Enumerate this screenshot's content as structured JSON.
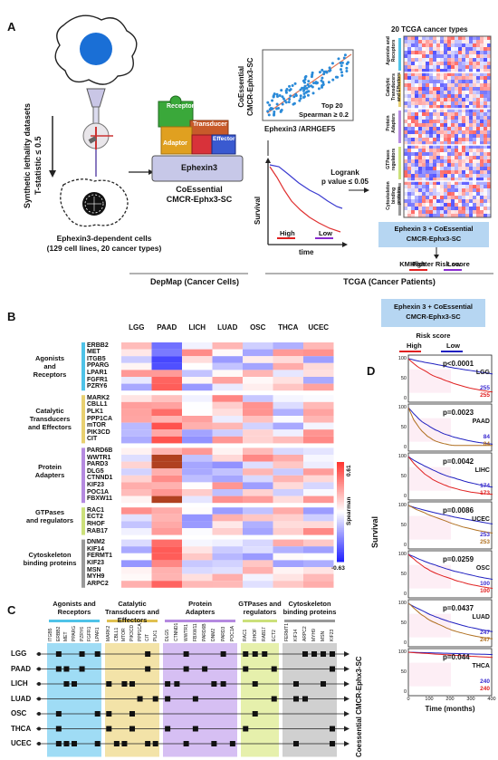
{
  "panels": {
    "A": "A",
    "B": "B",
    "C": "C",
    "D": "D"
  },
  "panel_a": {
    "synthetic_label_1": "Synthetic lethality datasets",
    "synthetic_label_2": "T-statistic ≤ 0.5",
    "cells_label_1": "Ephexin3-dependent cells",
    "cells_label_2": "(129 cell lines, 20 cancer types)",
    "puzzle": {
      "receptor": "Receptor",
      "transducer": "Transducer",
      "adaptor": "Adaptor",
      "effector": "Effector",
      "center": "Ephexin3"
    },
    "coessential_1": "CoEssential",
    "coessential_2": "CMCR-Ephx3-SC",
    "scatter_ylabel_1": "CoEssential",
    "scatter_ylabel_2": "CMCR-Ephx3-SC",
    "scatter_xlabel": "Ephexin3 /ARHGEF5",
    "top20": "Top 20",
    "spearman": "Spearman ≥ 0.2",
    "km_ylabel": "Survival",
    "km_xlabel": "time",
    "logrank_1": "Logrank",
    "logrank_2": "p value ≤ 0.05",
    "high": "High",
    "low": "Low",
    "tcga_title": "20 TCGA cancer types",
    "heat_rows": [
      "Agonists and Receptors",
      "Catalytic Transducers and Effectors",
      "Protein Adapters",
      "GTPases regulators",
      "Cytoskeleton binding proteins"
    ],
    "box_1": "Ephexin 3 + CoEssential",
    "box_2": "CMCR-Ephx3-SC",
    "km_plotter": "KM Plotter Risk score",
    "depmap": "DepMap (Cancer Cells)",
    "tcga": "TCGA (Cancer Patients)"
  },
  "panel_b": {
    "columns": [
      "LGG",
      "PAAD",
      "LICH",
      "LUAD",
      "OSC",
      "THCA",
      "UCEC"
    ],
    "groups": [
      {
        "label_1": "Agonists",
        "label_2": "and",
        "label_3": "Receptors",
        "color": "#4fc3e8",
        "genes": [
          "ERBB2",
          "MET",
          "ITGB5",
          "PPARG",
          "LPAR1",
          "FGFR1",
          "PZRY6"
        ]
      },
      {
        "label_1": "Catalytic",
        "label_2": "Transducers",
        "label_3": "and Effectors",
        "color": "#e8d070",
        "genes": [
          "MARK2",
          "CBLL1",
          "PLK1",
          "PPP1CA",
          "mTOR",
          "PIK3CD",
          "CIT"
        ]
      },
      {
        "label_1": "Protein",
        "label_2": "Adapters",
        "label_3": "",
        "color": "#b58ae0",
        "genes": [
          "PARD6B",
          "WWTR1",
          "PARD3",
          "DLG5",
          "CTNND1",
          "KIF23",
          "POC1A",
          "FBXW11"
        ]
      },
      {
        "label_1": "GTPases",
        "label_2": "and regulators",
        "label_3": "",
        "color": "#cbe07a",
        "genes": [
          "RAC1",
          "ECT2",
          "RHOF",
          "RAB17"
        ]
      },
      {
        "label_1": "Cytoskeleton",
        "label_2": "binding proteins",
        "label_3": "",
        "color": "#999999",
        "genes": [
          "DNM2",
          "KIF14",
          "FERMT1",
          "KIF23",
          "MSN",
          "MYH9",
          "ARPC2"
        ]
      }
    ],
    "colorbar_max": "0.61",
    "colorbar_min": "-0.63",
    "colorbar_label": "Spearman"
  },
  "panel_c": {
    "groups": [
      {
        "label_1": "Agonists and",
        "label_2": "Receptors",
        "color": "#9fdcf5",
        "bar": "#4fc3e8",
        "genes": [
          "ITGB5",
          "ERBB2",
          "MET",
          "PPARG",
          "PZRY6",
          "FGFR1",
          "LPAR1"
        ]
      },
      {
        "label_1": "Catalytic",
        "label_2": "Transducers and Effectors",
        "color": "#f3e3a8",
        "bar": "#e0c050",
        "genes": [
          "MARK2",
          "CBLL1",
          "MTOR",
          "PIK3CD",
          "PPP1CA",
          "CIT",
          "PLK1"
        ]
      },
      {
        "label_1": "Protein",
        "label_2": "Adapters",
        "color": "#d6bff3",
        "bar": "#b58ae0",
        "genes": [
          "DLG5",
          "CTNND1",
          "WWTR1",
          "FBXW11",
          "PARD6B",
          "DNM2",
          "PARD3",
          "POC1A"
        ]
      },
      {
        "label_1": "GTPases and",
        "label_2": "regulators",
        "color": "#e6f0ac",
        "bar": "#cbe07a",
        "genes": [
          "RAC1",
          "RHOF",
          "RAB17",
          "ECT2"
        ]
      },
      {
        "label_1": "Cytoskeleton",
        "label_2": "binding proteins",
        "color": "#d0d0d0",
        "bar": "#999999",
        "genes": [
          "FERMT1",
          "KIF14",
          "ARPC2",
          "MYH9",
          "MSN",
          "KIF23"
        ]
      }
    ],
    "rows": [
      "LGG",
      "PAAD",
      "LICH",
      "LUAD",
      "OSC",
      "THCA",
      "UCEC"
    ],
    "side_label": "Coessential CMCR-Ephx3-SC"
  },
  "panel_d": {
    "box_1": "Ephexin 3 + CoEssential",
    "box_2": "CMCR-Ephx3-SC",
    "risk": "Risk score",
    "high": "High",
    "low": "Low",
    "ylabel": "Survival",
    "xlabel": "Time (months)",
    "xticks": [
      "0",
      "100",
      "200",
      "300",
      "400"
    ],
    "yticks": [
      "100",
      "50",
      "0"
    ],
    "plots": [
      {
        "p": "p<0.0001",
        "cancer": "LGG",
        "n_low": "255",
        "n_high": "255"
      },
      {
        "p": "p=0.0023",
        "cancer": "PAAD",
        "n_low": "84",
        "n_high": "84"
      },
      {
        "p": "p=0.0042",
        "cancer": "LIHC",
        "n_low": "174",
        "n_high": "173"
      },
      {
        "p": "p=0.0086",
        "cancer": "UCEC",
        "n_low": "253",
        "n_high": "253"
      },
      {
        "p": "p=0.0259",
        "cancer": "OSC",
        "n_low": "100",
        "n_high": "100"
      },
      {
        "p": "p=0.0437",
        "cancer": "LUAD",
        "n_low": "247",
        "n_high": "247"
      },
      {
        "p": "p=0.044",
        "cancer": "THCA",
        "n_low": "240",
        "n_high": "240"
      }
    ]
  },
  "colors": {
    "high": "#e02020",
    "low": "#2020c0",
    "tan": "#b07020"
  }
}
